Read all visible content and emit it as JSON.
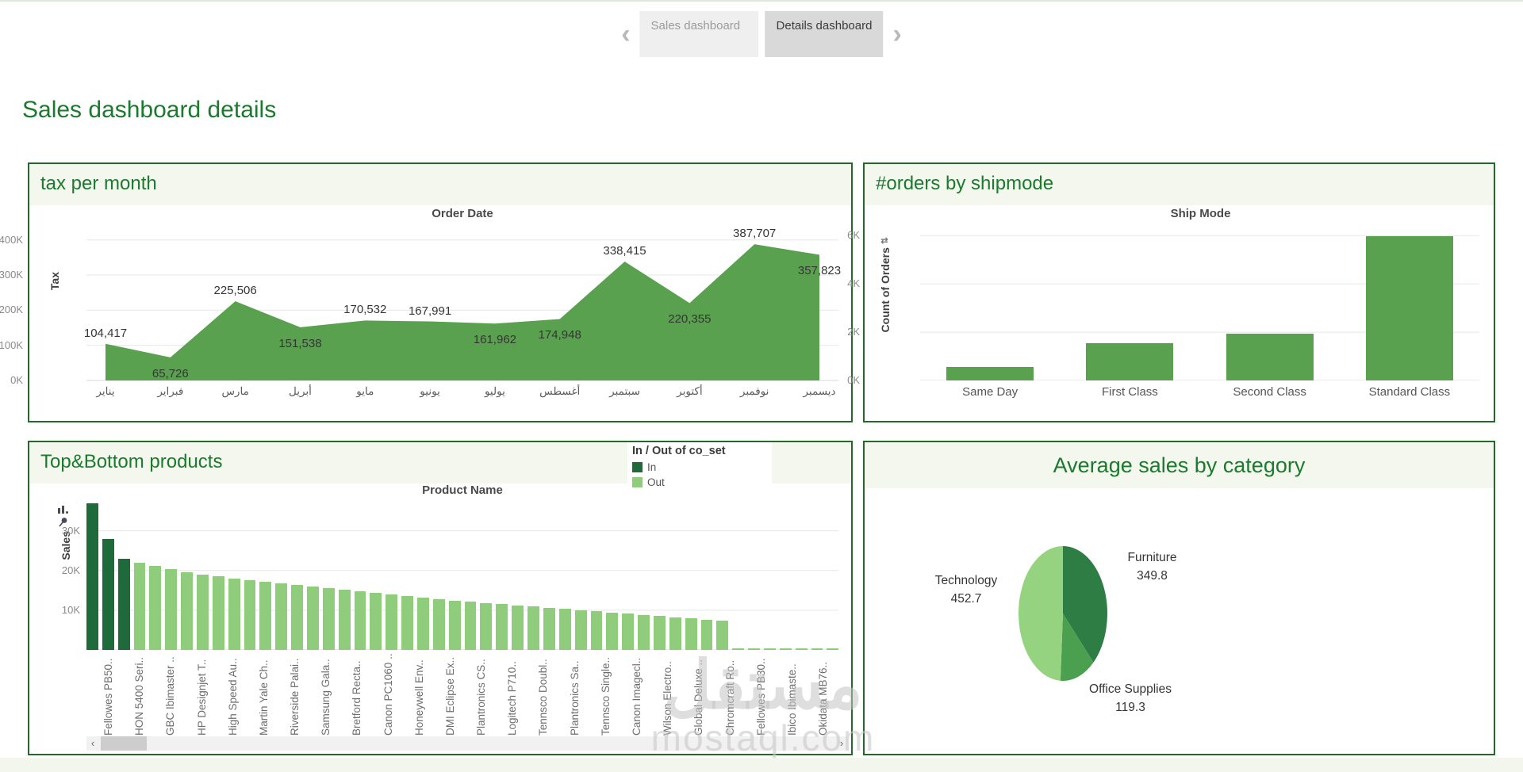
{
  "ui": {
    "nav_prev_icon": "‹",
    "nav_next_icon": "›",
    "tabs": [
      {
        "label": "Sales dashboard",
        "active": false
      },
      {
        "label": "Details dashboard",
        "active": true
      }
    ],
    "page_title": "Sales dashboard details",
    "watermark_line1": "مستقل",
    "watermark_line2": "mostaql.com",
    "scrollbar": {
      "left_arrow": "‹",
      "right_arrow": "›"
    }
  },
  "colors": {
    "title_green": "#1b7a2e",
    "panel_border": "#26682c",
    "area_green": "#59a14f",
    "bar_green": "#59a14f",
    "in_dark_green": "#1f6a3a",
    "out_light_green": "#8fcd7d",
    "pie_furniture": "#2e7d44",
    "pie_office": "#4ba050",
    "pie_technology": "#96d381",
    "gridline": "#e7e7e7",
    "axis_line": "#d7d7d7"
  },
  "chart_data": [
    {
      "type": "area",
      "title": "tax per month",
      "axis_title": "Order Date",
      "ylabel": "Tax",
      "categories": [
        "يناير",
        "فبراير",
        "مارس",
        "أبريل",
        "مايو",
        "يونيو",
        "يوليو",
        "أغسطس",
        "سبتمبر",
        "أكتوبر",
        "نوفمبر",
        "ديسمبر"
      ],
      "values": [
        104417,
        65726,
        225506,
        151538,
        170532,
        167991,
        161962,
        174948,
        338415,
        220355,
        387707,
        357823
      ],
      "point_labels": [
        "104,417",
        "65,726",
        "225,506",
        "151,538",
        "170,532",
        "167,991",
        "161,962",
        "174,948",
        "338,415",
        "220,355",
        "387,707",
        "357,823"
      ],
      "label_side": [
        "above",
        "below",
        "above",
        "below",
        "above",
        "above",
        "below",
        "below",
        "above",
        "below",
        "above",
        "below"
      ],
      "yticks": [
        {
          "label": "0K",
          "value": 0
        },
        {
          "label": "100K",
          "value": 100000
        },
        {
          "label": "200K",
          "value": 200000
        },
        {
          "label": "300K",
          "value": 300000
        },
        {
          "label": "400K",
          "value": 400000
        }
      ],
      "ylim": [
        0,
        440000
      ],
      "grid": true,
      "legend": null
    },
    {
      "type": "bar",
      "title": "#orders by shipmode",
      "axis_title": "Ship Mode",
      "ylabel": "Count of Orders",
      "sort_glyph": "⇅",
      "categories": [
        "Same Day",
        "First Class",
        "Second Class",
        "Standard Class"
      ],
      "values": [
        543,
        1538,
        1945,
        5968
      ],
      "yticks": [
        {
          "label": "0K",
          "value": 0
        },
        {
          "label": "2K",
          "value": 2000
        },
        {
          "label": "4K",
          "value": 4000
        },
        {
          "label": "6K",
          "value": 6000
        }
      ],
      "ylim": [
        0,
        6400
      ],
      "grid": true
    },
    {
      "type": "bar",
      "title": "Top&Bottom products",
      "axis_title": "Product Name",
      "ylabel": "Sales",
      "legend": {
        "title": "In / Out of co_set",
        "items": [
          {
            "label": "In",
            "color_key": "in_dark_green"
          },
          {
            "label": "Out",
            "color_key": "out_light_green"
          }
        ]
      },
      "in_count": 3,
      "values_k": [
        37,
        28,
        23,
        22,
        21.2,
        20.3,
        19.6,
        19,
        18.5,
        18,
        17.5,
        17.1,
        16.7,
        16.3,
        15.9,
        15.5,
        15.1,
        14.7,
        14.3,
        13.9,
        13.5,
        13.1,
        12.7,
        12.4,
        12.1,
        11.8,
        11.5,
        11.2,
        10.9,
        10.6,
        10.3,
        10,
        9.7,
        9.4,
        9.1,
        8.8,
        8.5,
        8.2,
        7.9,
        7.6,
        7.3,
        0.5,
        0.45,
        0.4,
        0.38,
        0.35,
        0.3,
        0.28
      ],
      "xlabels": [
        "Fellowes PB50..",
        "HON 5400 Seri..",
        "GBC Ibimaster ..",
        "HP Designjet T..",
        "High Speed Au..",
        "Martin Yale Ch..",
        "Riverside Palai..",
        "Samsung Gala..",
        "Bretford Recta..",
        "Canon PC1060 ..",
        "Honeywell Env..",
        "DMI Eclipse Ex..",
        "Plantronics CS..",
        "Logitech P710..",
        "Tennsco Doubl..",
        "Plantronics Sa..",
        "Tennsco Single..",
        "Canon Imagecl..",
        "Wilson Electro..",
        "Global Deluxe ..",
        "Chromcraft Ro..",
        "Fellowes PB30..",
        "Ibico Ibimaste..",
        "Okidata MB76.."
      ],
      "yticks": [
        {
          "label": "10K",
          "value": 10
        },
        {
          "label": "20K",
          "value": 20
        },
        {
          "label": "30K",
          "value": 30
        }
      ],
      "ylim_k": [
        0,
        37.5
      ],
      "grid": true
    },
    {
      "type": "pie",
      "title": "Average sales by category",
      "slices": [
        {
          "label": "Furniture",
          "value": 349.8,
          "value_label": "349.8",
          "color_key": "pie_furniture"
        },
        {
          "label": "Office Supplies",
          "value": 119.3,
          "value_label": "119.3",
          "color_key": "pie_office"
        },
        {
          "label": "Technology",
          "value": 452.7,
          "value_label": "452.7",
          "color_key": "pie_technology"
        }
      ]
    }
  ]
}
